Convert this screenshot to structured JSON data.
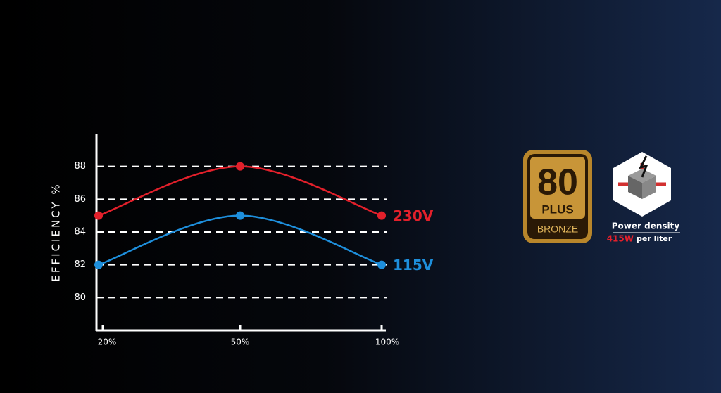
{
  "chart_data": {
    "type": "line",
    "y_label": "EFFICIENCY %",
    "categories": [
      "20%",
      "50%",
      "100%"
    ],
    "series": [
      {
        "name": "230V",
        "color": "#e3202b",
        "values": [
          85,
          88,
          85
        ]
      },
      {
        "name": "115V",
        "color": "#1e8fdc",
        "values": [
          82,
          85,
          82
        ]
      }
    ],
    "ylim": [
      78,
      90
    ],
    "yticks": [
      80,
      82,
      84,
      86,
      88
    ],
    "grid": true
  },
  "badges": {
    "plus80": {
      "number": "80",
      "word": "PLUS",
      "tier": "BRONZE"
    },
    "power": {
      "label": "Power density",
      "value": "415W",
      "unit": "per liter"
    }
  }
}
